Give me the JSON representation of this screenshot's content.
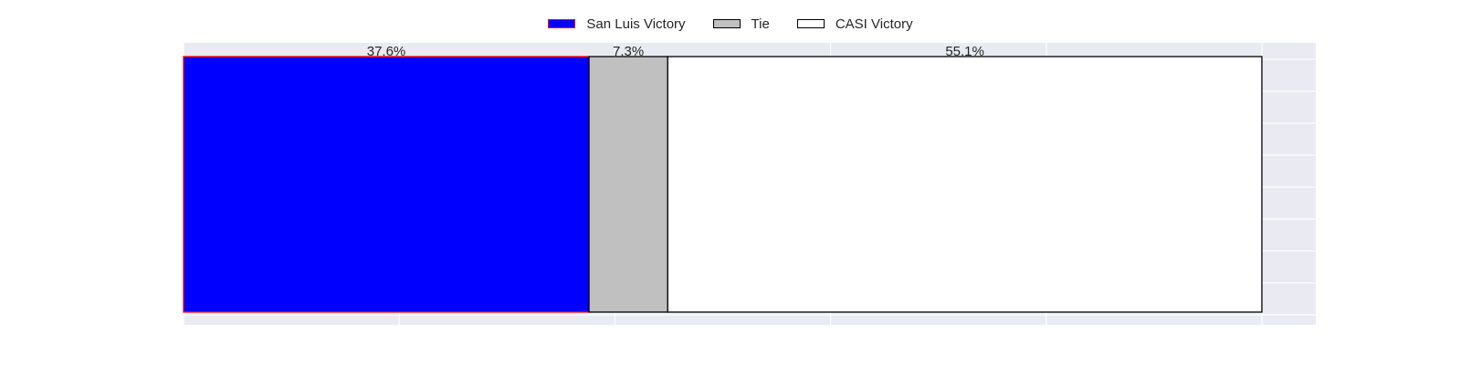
{
  "chart_data": {
    "type": "bar",
    "orientation": "horizontal",
    "stacked": true,
    "normalized": true,
    "categories": [
      ""
    ],
    "series": [
      {
        "name": "San Luis Victory",
        "values": [
          37.6
        ],
        "label": "37.6%",
        "color": "#0000ff",
        "edgecolor": "#ff0000"
      },
      {
        "name": "Tie",
        "values": [
          7.3
        ],
        "label": "7.3%",
        "color": "#c0c0c0",
        "edgecolor": "#000000"
      },
      {
        "name": "CASI Victory",
        "values": [
          55.1
        ],
        "label": "55.1%",
        "color": "#ffffff",
        "edgecolor": "#000000"
      }
    ],
    "title": "",
    "xlabel": "",
    "ylabel": "",
    "xlim": [
      0,
      105
    ],
    "grid": true,
    "legend_position": "top-center"
  }
}
